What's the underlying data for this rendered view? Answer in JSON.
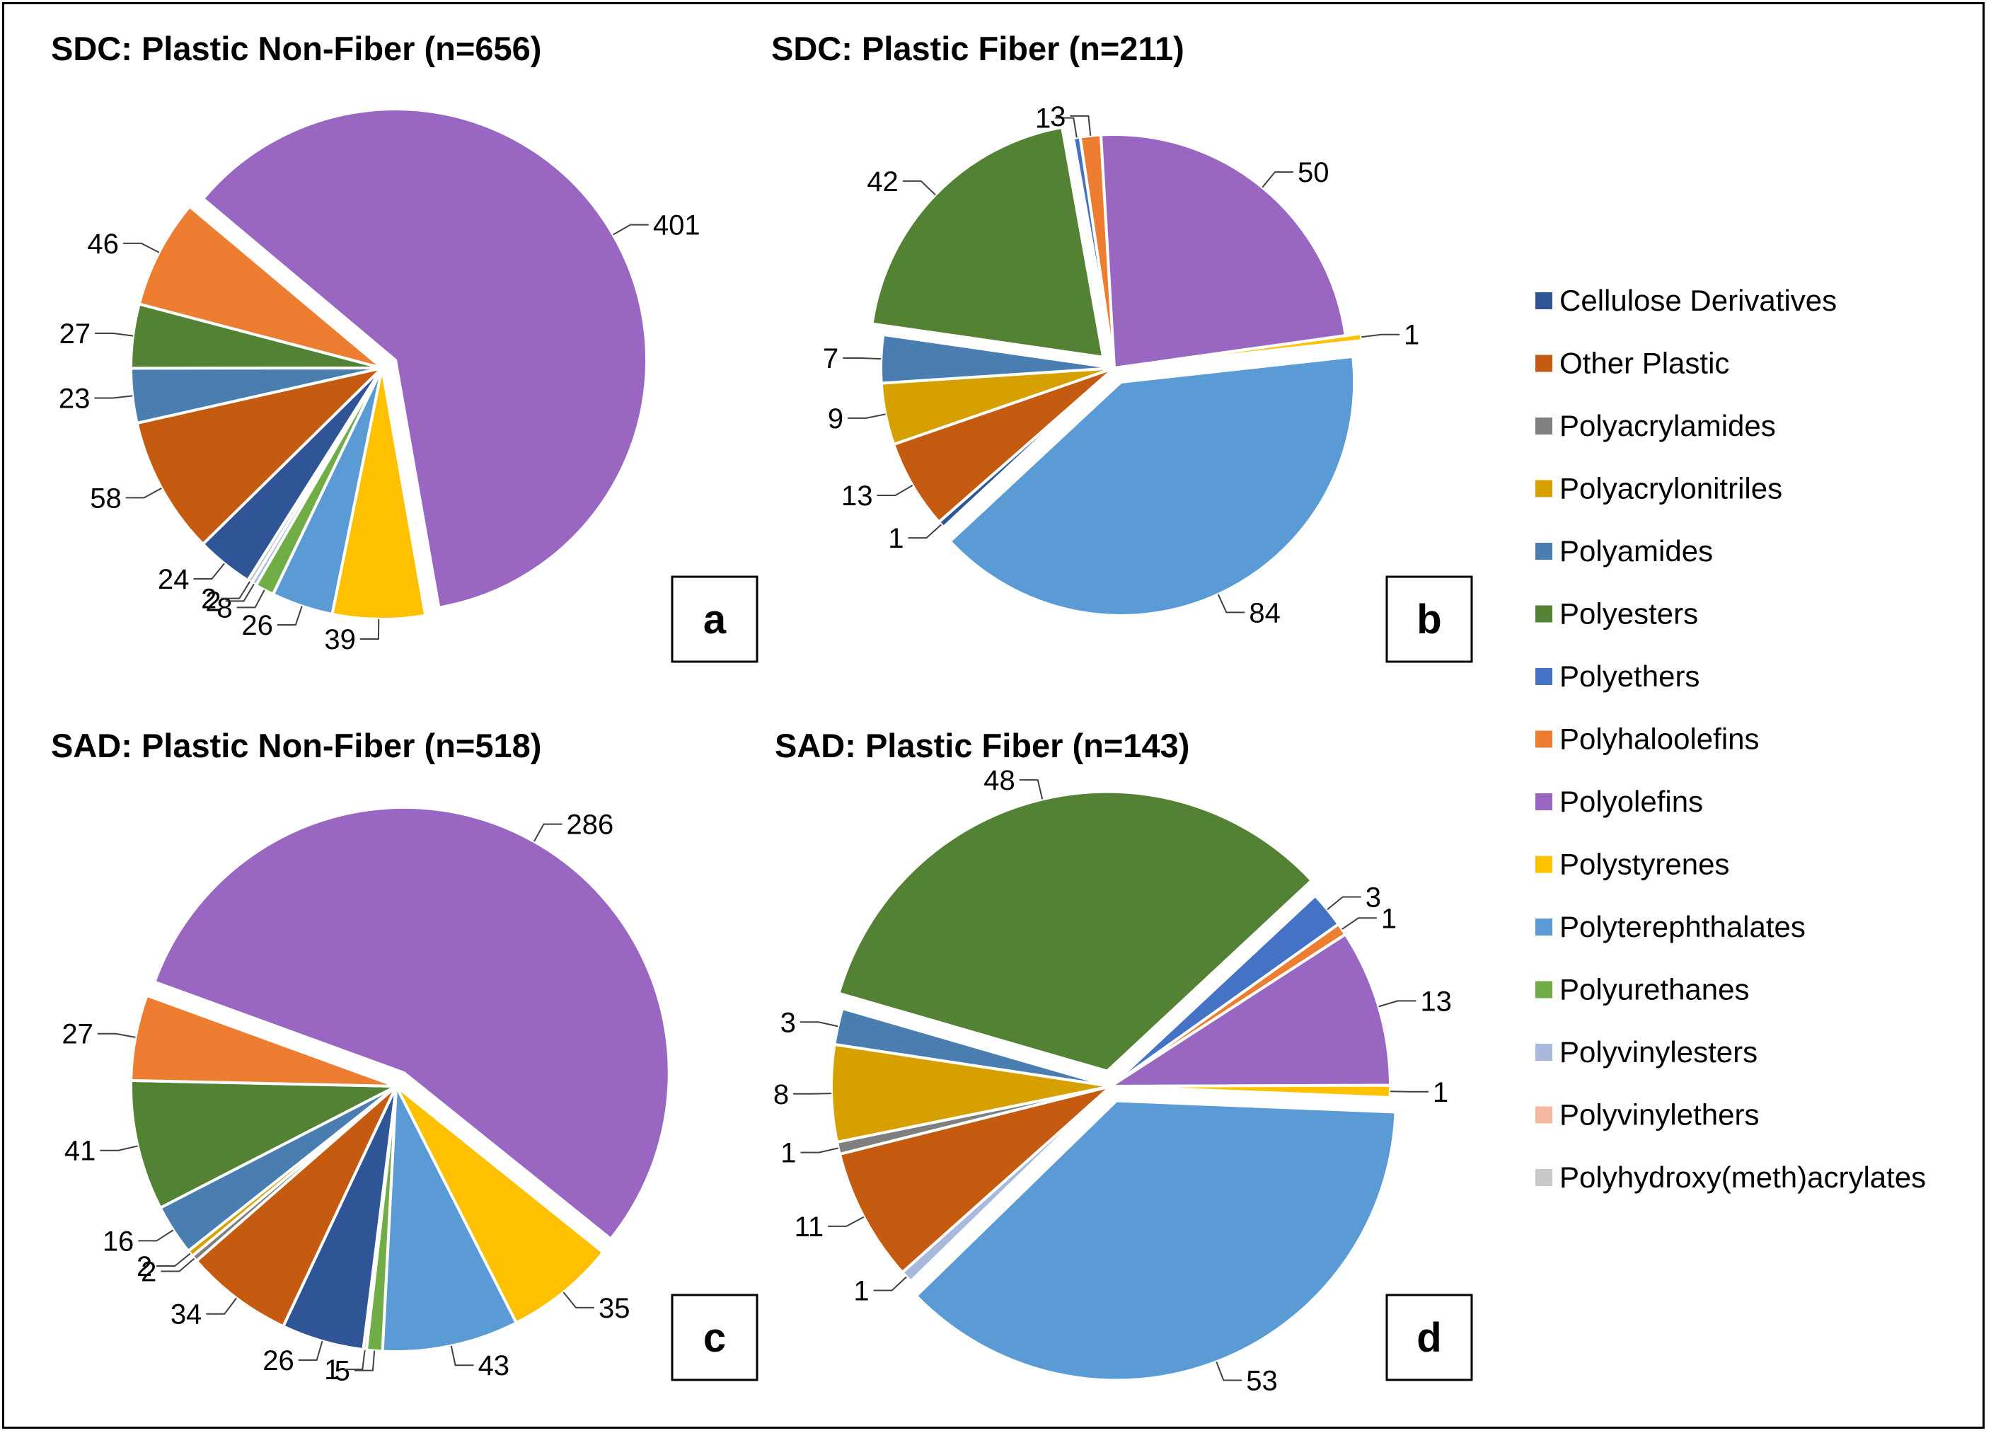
{
  "legend": [
    {
      "name": "Cellulose Derivatives",
      "color": "#2F5597"
    },
    {
      "name": "Other Plastic",
      "color": "#C55A11"
    },
    {
      "name": "Polyacrylamides",
      "color": "#7F7F7F"
    },
    {
      "name": "Polyacrylonitriles",
      "color": "#D6A100"
    },
    {
      "name": "Polyamides",
      "color": "#4A7EB0"
    },
    {
      "name": "Polyesters",
      "color": "#548235"
    },
    {
      "name": "Polyethers",
      "color": "#4472C4"
    },
    {
      "name": "Polyhaloolefins",
      "color": "#ED7D31"
    },
    {
      "name": "Polyolefins",
      "color": "#9966C2"
    },
    {
      "name": "Polystyrenes",
      "color": "#FFC000"
    },
    {
      "name": "Polyterephthalates",
      "color": "#5B9BD5"
    },
    {
      "name": "Polyurethanes",
      "color": "#70AD47"
    },
    {
      "name": "Polyvinylesters",
      "color": "#A9B8DD"
    },
    {
      "name": "Polyvinylethers",
      "color": "#F4B9A0"
    },
    {
      "name": "Polyhydroxy(meth)acrylates",
      "color": "#C9C9C9"
    }
  ],
  "chart_data": [
    {
      "type": "pie",
      "panel": "a",
      "title": "SDC: Plastic Non-Fiber (n=656)",
      "slices": [
        {
          "category": "Polyolefins",
          "value": 401,
          "exploded": true
        },
        {
          "category": "Polystyrenes",
          "value": 39
        },
        {
          "category": "Polyterephthalates",
          "value": 26
        },
        {
          "category": "Polyurethanes",
          "value": 8
        },
        {
          "category": "Polyvinylesters",
          "value": 2
        },
        {
          "category": "Polyhydroxy(meth)acrylates",
          "value": 2
        },
        {
          "category": "Cellulose Derivatives",
          "value": 24
        },
        {
          "category": "Other Plastic",
          "value": 58
        },
        {
          "category": "Polyamides",
          "value": 23
        },
        {
          "category": "Polyesters",
          "value": 27
        },
        {
          "category": "Polyhaloolefins",
          "value": 46
        }
      ]
    },
    {
      "type": "pie",
      "panel": "b",
      "title": "SDC: Plastic Fiber (n=211)",
      "slices": [
        {
          "category": "Polystyrenes",
          "value": 1,
          "exploded": true
        },
        {
          "category": "Polyterephthalates",
          "value": 84,
          "exploded": true
        },
        {
          "category": "Cellulose Derivatives",
          "value": 1
        },
        {
          "category": "Other Plastic",
          "value": 13
        },
        {
          "category": "Polyacrylonitriles",
          "value": 9
        },
        {
          "category": "Polyamides",
          "value": 7
        },
        {
          "category": "Polyesters",
          "value": 42,
          "exploded": true
        },
        {
          "category": "Polyethers",
          "value": 1
        },
        {
          "category": "Polyhaloolefins",
          "value": 3
        },
        {
          "category": "Polyolefins",
          "value": 50
        }
      ]
    },
    {
      "type": "pie",
      "panel": "c",
      "title": "SAD: Plastic Non-Fiber (n=518)",
      "slices": [
        {
          "category": "Polyolefins",
          "value": 286,
          "exploded": true
        },
        {
          "category": "Polystyrenes",
          "value": 35
        },
        {
          "category": "Polyterephthalates",
          "value": 43
        },
        {
          "category": "Polyurethanes",
          "value": 5
        },
        {
          "category": "Polyvinylethers",
          "value": 1
        },
        {
          "category": "Cellulose Derivatives",
          "value": 26
        },
        {
          "category": "Other Plastic",
          "value": 34
        },
        {
          "category": "Polyacrylamides",
          "value": 2
        },
        {
          "category": "Polyacrylonitriles",
          "value": 2
        },
        {
          "category": "Polyamides",
          "value": 16
        },
        {
          "category": "Polyesters",
          "value": 41
        },
        {
          "category": "Polyhaloolefins",
          "value": 27
        }
      ]
    },
    {
      "type": "pie",
      "panel": "d",
      "title": "SAD: Plastic Fiber (n=143)",
      "slices": [
        {
          "category": "Polyethers",
          "value": 3
        },
        {
          "category": "Polyhaloolefins",
          "value": 1
        },
        {
          "category": "Polyolefins",
          "value": 13
        },
        {
          "category": "Polystyrenes",
          "value": 1
        },
        {
          "category": "Polyterephthalates",
          "value": 53,
          "exploded": true
        },
        {
          "category": "Polyvinylesters",
          "value": 1
        },
        {
          "category": "Other Plastic",
          "value": 11
        },
        {
          "category": "Polyacrylamides",
          "value": 1
        },
        {
          "category": "Polyacrylonitriles",
          "value": 8
        },
        {
          "category": "Polyamides",
          "value": 3
        },
        {
          "category": "Polyesters",
          "value": 48,
          "exploded": true
        }
      ]
    }
  ]
}
